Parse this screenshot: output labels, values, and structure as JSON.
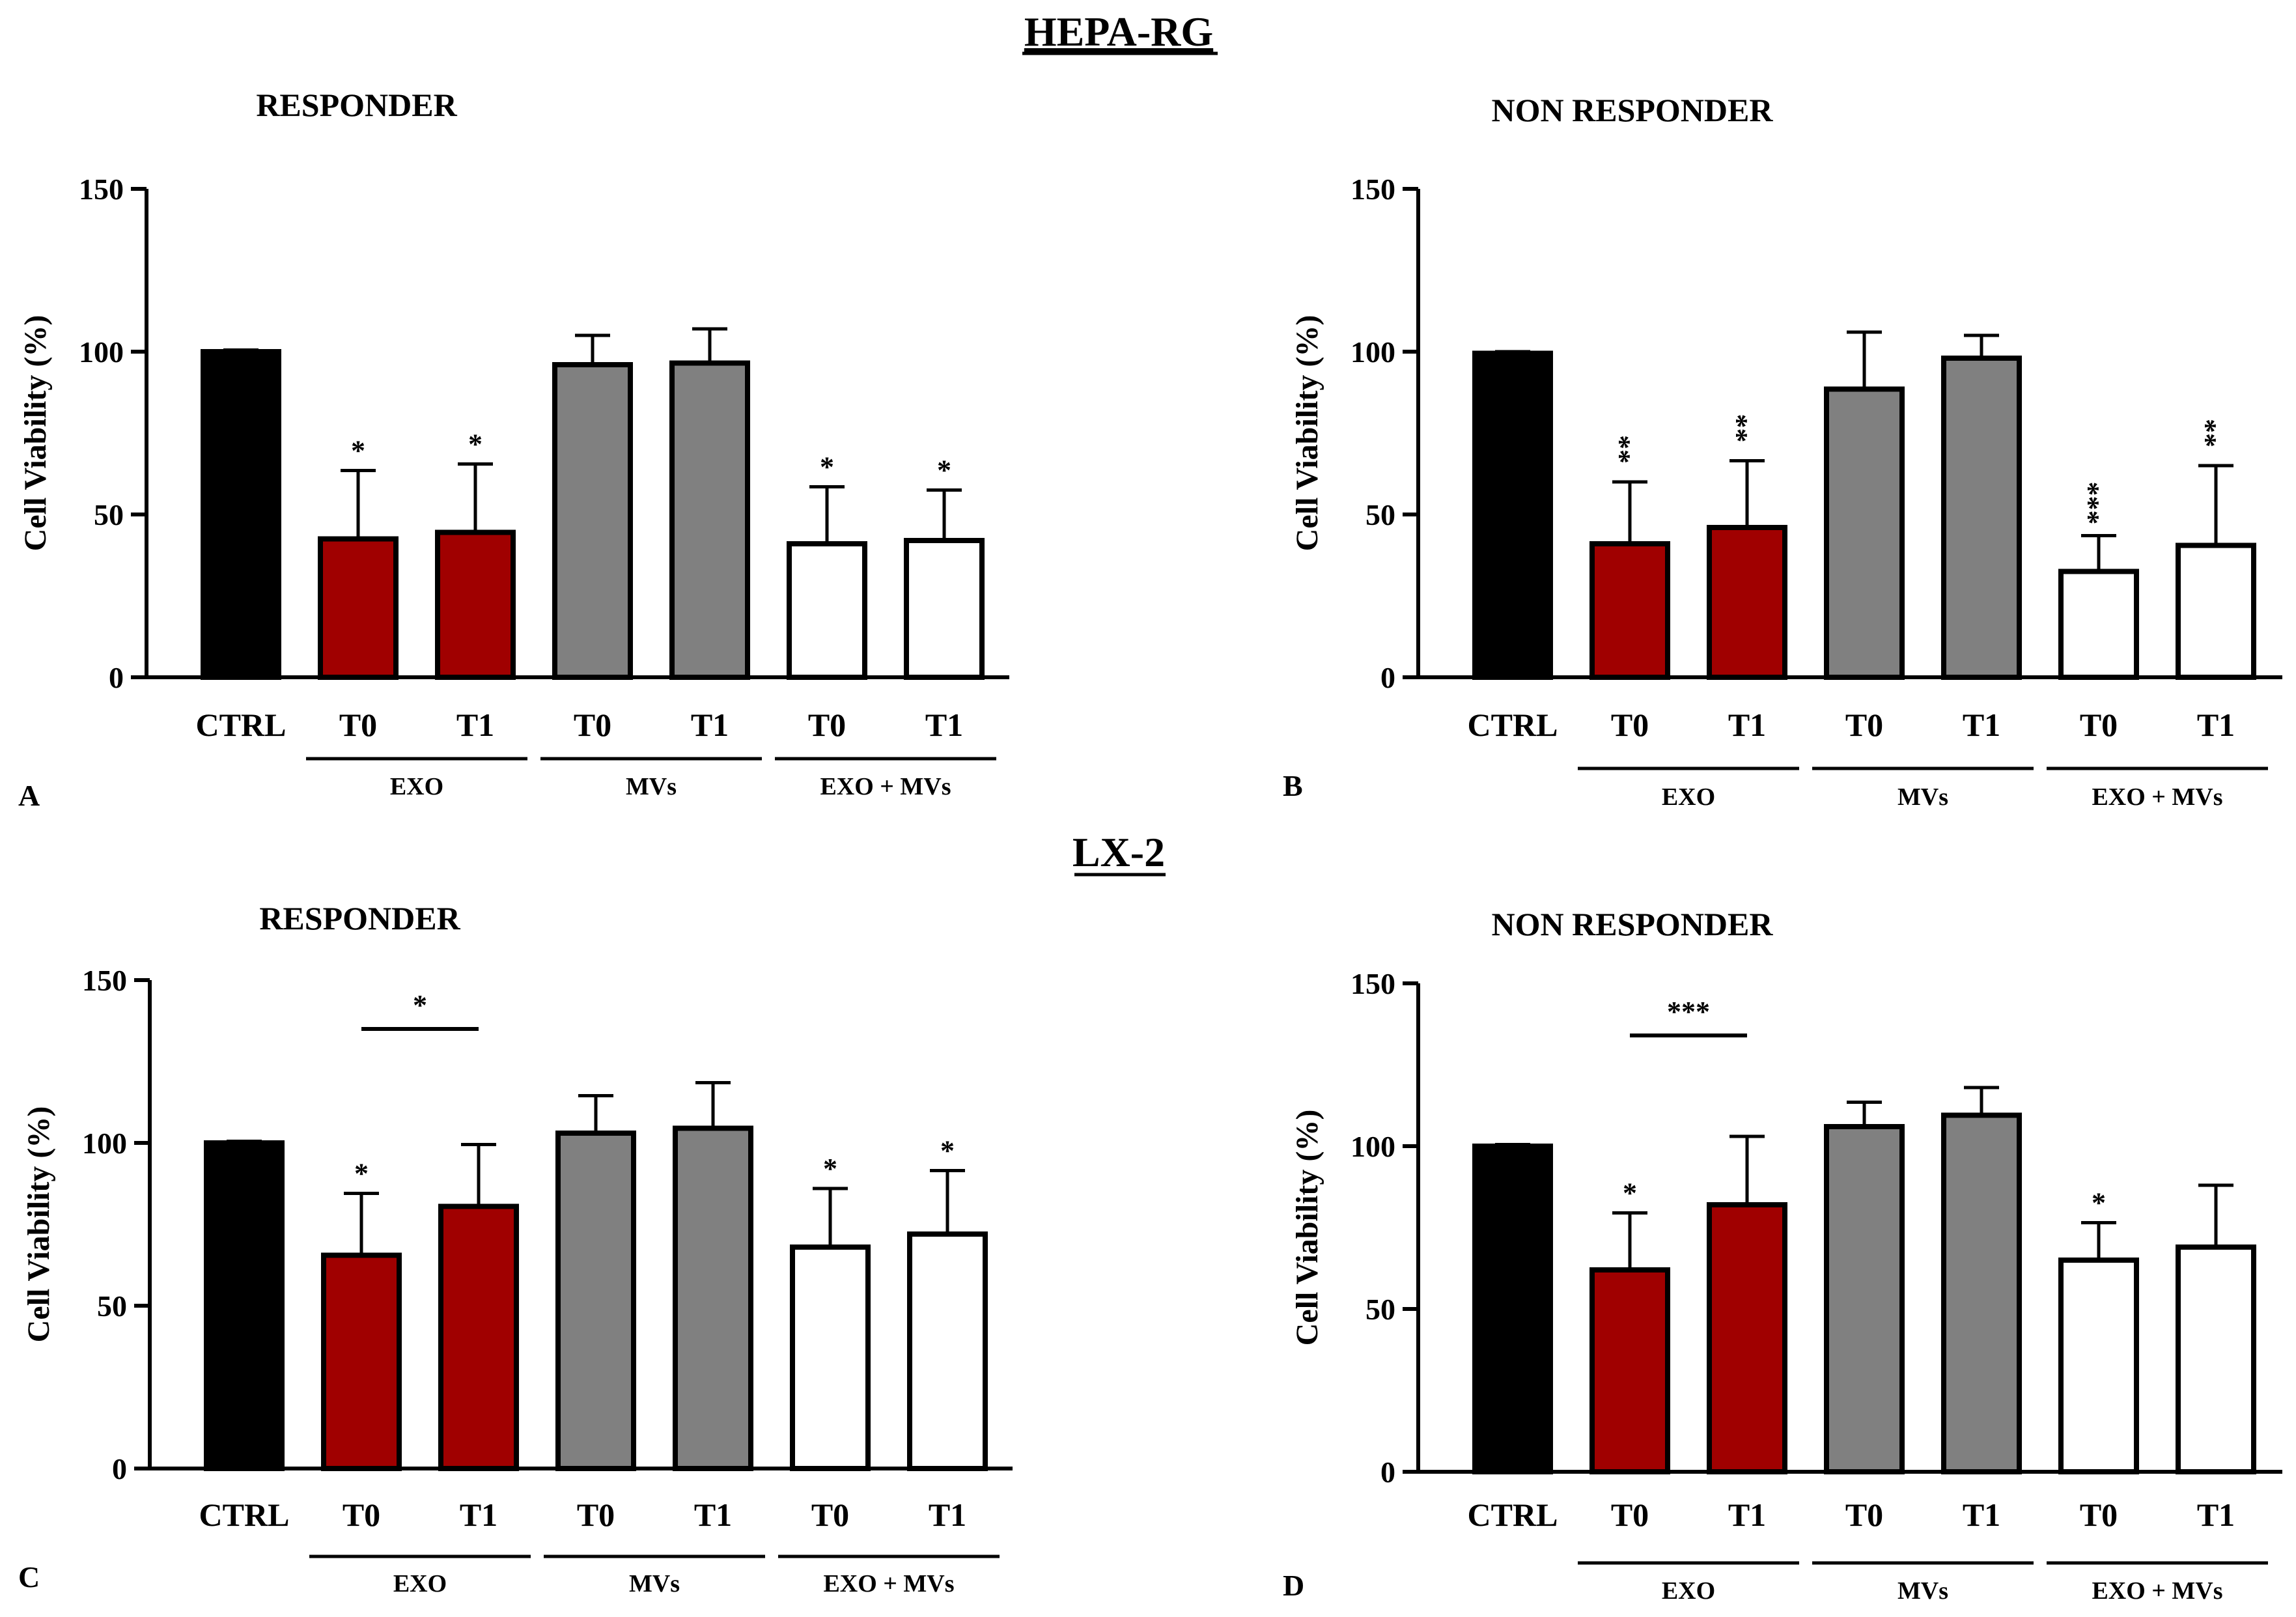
{
  "sections": [
    {
      "title": "HEPA-RG"
    },
    {
      "title": "LX-2"
    }
  ],
  "colors": {
    "ctrl": "#000000",
    "exo": "#a00000",
    "mvs": "#808080",
    "exo_mvs": "#ffffff",
    "stroke": "#000000"
  },
  "chart_data": [
    {
      "panel": "A",
      "section": "HEPA-RG",
      "title": "RESPONDER",
      "type": "bar",
      "ylabel": "Cell Viability (%)",
      "ylim": [
        0,
        150
      ],
      "yticks": [
        0,
        50,
        100,
        150
      ],
      "categories": [
        "CTRL",
        "T0",
        "T1",
        "T0",
        "T1",
        "T0",
        "T1"
      ],
      "groups": [
        "ctrl",
        "exo",
        "exo",
        "mvs",
        "mvs",
        "exo_mvs",
        "exo_mvs"
      ],
      "values": [
        100,
        42.5,
        44.5,
        96,
        96.5,
        41,
        42
      ],
      "errors": [
        0.5,
        21,
        21,
        9,
        10.5,
        17.5,
        15.5
      ],
      "stars": [
        "",
        "*",
        "*",
        "",
        "",
        "*",
        "*"
      ],
      "group_labels": [
        {
          "label": "EXO",
          "from": 1,
          "to": 2
        },
        {
          "label": "MVs",
          "from": 3,
          "to": 4
        },
        {
          "label": "EXO + MVs",
          "from": 5,
          "to": 6
        }
      ],
      "comparisons": []
    },
    {
      "panel": "B",
      "section": "HEPA-RG",
      "title": "NON RESPONDER",
      "type": "bar",
      "ylabel": "Cell Viability (%)",
      "ylim": [
        0,
        150
      ],
      "yticks": [
        0,
        50,
        100,
        150
      ],
      "categories": [
        "CTRL",
        "T0",
        "T1",
        "T0",
        "T1",
        "T0",
        "T1"
      ],
      "groups": [
        "ctrl",
        "exo",
        "exo",
        "mvs",
        "mvs",
        "exo_mvs",
        "exo_mvs"
      ],
      "values": [
        99.5,
        41,
        46,
        88.5,
        98,
        32.5,
        40.5
      ],
      "errors": [
        0.5,
        19,
        20.5,
        17.5,
        7,
        11,
        24.5
      ],
      "stars": [
        "",
        "**",
        "**",
        "",
        "",
        "***",
        "**"
      ],
      "group_labels": [
        {
          "label": "EXO",
          "from": 1,
          "to": 2
        },
        {
          "label": "MVs",
          "from": 3,
          "to": 4
        },
        {
          "label": "EXO + MVs",
          "from": 5,
          "to": 6
        }
      ],
      "comparisons": []
    },
    {
      "panel": "C",
      "section": "LX-2",
      "title": "RESPONDER",
      "type": "bar",
      "ylabel": "Cell Viability (%)",
      "ylim": [
        0,
        150
      ],
      "yticks": [
        0,
        50,
        100,
        150
      ],
      "categories": [
        "CTRL",
        "T0",
        "T1",
        "T0",
        "T1",
        "T0",
        "T1"
      ],
      "groups": [
        "ctrl",
        "exo",
        "exo",
        "mvs",
        "mvs",
        "exo_mvs",
        "exo_mvs"
      ],
      "values": [
        100,
        65.5,
        80.5,
        103,
        104.5,
        68,
        72
      ],
      "errors": [
        0.5,
        19,
        19,
        11.5,
        14,
        18,
        19.5
      ],
      "stars": [
        "",
        "*",
        "",
        "",
        "",
        "*",
        "*"
      ],
      "group_labels": [
        {
          "label": "EXO",
          "from": 1,
          "to": 2
        },
        {
          "label": "MVs",
          "from": 3,
          "to": 4
        },
        {
          "label": "EXO + MVs",
          "from": 5,
          "to": 6
        }
      ],
      "comparisons": [
        {
          "from": 1,
          "to": 2,
          "y": 135,
          "label": "*"
        }
      ]
    },
    {
      "panel": "D",
      "section": "LX-2",
      "title": "NON RESPONDER",
      "type": "bar",
      "ylabel": "Cell Viability (%)",
      "ylim": [
        0,
        150
      ],
      "yticks": [
        0,
        50,
        100,
        150
      ],
      "categories": [
        "CTRL",
        "T0",
        "T1",
        "T0",
        "T1",
        "T0",
        "T1"
      ],
      "groups": [
        "ctrl",
        "exo",
        "exo",
        "mvs",
        "mvs",
        "exo_mvs",
        "exo_mvs"
      ],
      "values": [
        100,
        62,
        82,
        106,
        109.5,
        65,
        69
      ],
      "errors": [
        0.5,
        17.5,
        21,
        7.5,
        8.5,
        11.5,
        19
      ],
      "stars": [
        "",
        "*",
        "",
        "",
        "",
        "*",
        ""
      ],
      "group_labels": [
        {
          "label": "EXO",
          "from": 1,
          "to": 2
        },
        {
          "label": "MVs",
          "from": 3,
          "to": 4
        },
        {
          "label": "EXO + MVs",
          "from": 5,
          "to": 6
        }
      ],
      "comparisons": [
        {
          "from": 1,
          "to": 2,
          "y": 134,
          "label": "***"
        }
      ]
    }
  ]
}
